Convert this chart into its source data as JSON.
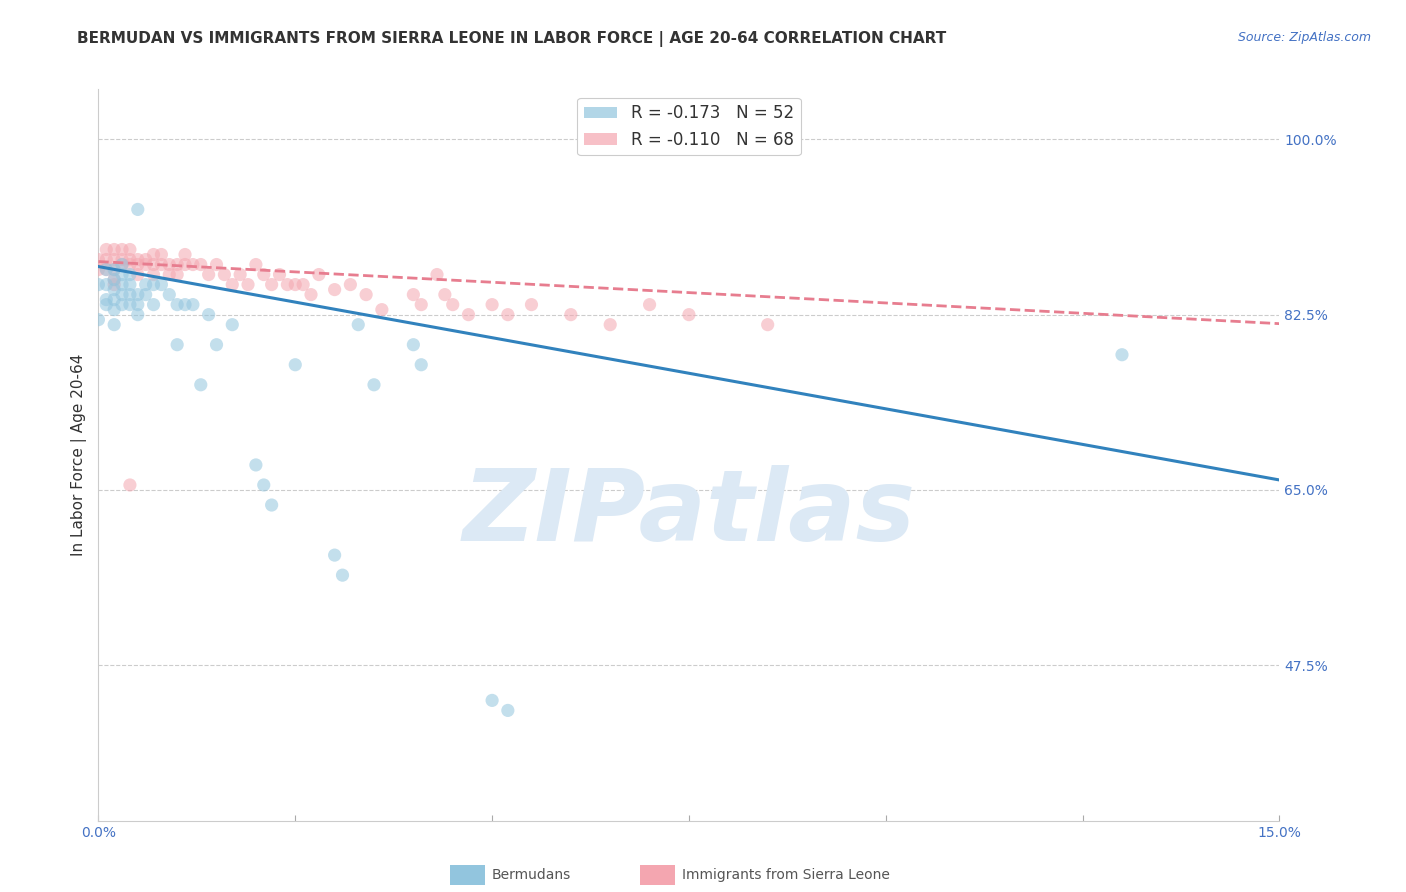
{
  "title": "BERMUDAN VS IMMIGRANTS FROM SIERRA LEONE IN LABOR FORCE | AGE 20-64 CORRELATION CHART",
  "source": "Source: ZipAtlas.com",
  "ylabel": "In Labor Force | Age 20-64",
  "xlim": [
    0.0,
    0.15
  ],
  "ylim": [
    0.32,
    1.05
  ],
  "yticks": [
    0.475,
    0.65,
    0.825,
    1.0
  ],
  "ytick_labels": [
    "47.5%",
    "65.0%",
    "82.5%",
    "100.0%"
  ],
  "xticks": [
    0.0,
    0.025,
    0.05,
    0.075,
    0.1,
    0.125,
    0.15
  ],
  "xtick_labels": [
    "0.0%",
    "",
    "",
    "",
    "",
    "",
    "15.0%"
  ],
  "bermudan_color": "#92c5de",
  "sierraleone_color": "#f4a6b0",
  "trendline_blue_color": "#3182bd",
  "trendline_pink_color": "#e77d8f",
  "background_color": "#ffffff",
  "watermark": "ZIPatlas",
  "watermark_color": "#dce9f5",
  "legend_label_blue": "R = -0.173   N = 52",
  "legend_label_pink": "R = -0.110   N = 68",
  "bermudan_x": [
    0.0,
    0.0,
    0.001,
    0.001,
    0.001,
    0.001,
    0.002,
    0.002,
    0.002,
    0.002,
    0.002,
    0.002,
    0.003,
    0.003,
    0.003,
    0.003,
    0.003,
    0.004,
    0.004,
    0.004,
    0.004,
    0.005,
    0.005,
    0.005,
    0.006,
    0.006,
    0.007,
    0.007,
    0.008,
    0.009,
    0.01,
    0.01,
    0.011,
    0.012,
    0.013,
    0.014,
    0.015,
    0.017,
    0.02,
    0.021,
    0.022,
    0.025,
    0.03,
    0.031,
    0.033,
    0.035,
    0.04,
    0.041,
    0.05,
    0.052,
    0.13,
    0.005
  ],
  "bermudan_y": [
    0.855,
    0.82,
    0.87,
    0.855,
    0.84,
    0.835,
    0.87,
    0.86,
    0.85,
    0.84,
    0.83,
    0.815,
    0.875,
    0.865,
    0.855,
    0.845,
    0.835,
    0.865,
    0.855,
    0.845,
    0.835,
    0.845,
    0.835,
    0.825,
    0.855,
    0.845,
    0.855,
    0.835,
    0.855,
    0.845,
    0.835,
    0.795,
    0.835,
    0.835,
    0.755,
    0.825,
    0.795,
    0.815,
    0.675,
    0.655,
    0.635,
    0.775,
    0.585,
    0.565,
    0.815,
    0.755,
    0.795,
    0.775,
    0.44,
    0.43,
    0.785,
    0.93
  ],
  "sierraleone_x": [
    0.0,
    0.0,
    0.001,
    0.001,
    0.001,
    0.002,
    0.002,
    0.002,
    0.002,
    0.002,
    0.003,
    0.003,
    0.003,
    0.004,
    0.004,
    0.004,
    0.005,
    0.005,
    0.005,
    0.006,
    0.006,
    0.007,
    0.007,
    0.007,
    0.008,
    0.008,
    0.009,
    0.009,
    0.01,
    0.01,
    0.011,
    0.011,
    0.012,
    0.013,
    0.014,
    0.015,
    0.016,
    0.017,
    0.018,
    0.019,
    0.02,
    0.021,
    0.022,
    0.023,
    0.024,
    0.025,
    0.026,
    0.027,
    0.028,
    0.03,
    0.032,
    0.034,
    0.036,
    0.04,
    0.041,
    0.043,
    0.044,
    0.045,
    0.047,
    0.05,
    0.052,
    0.055,
    0.06,
    0.065,
    0.07,
    0.075,
    0.085,
    0.004
  ],
  "sierraleone_y": [
    0.88,
    0.87,
    0.89,
    0.88,
    0.87,
    0.89,
    0.88,
    0.87,
    0.86,
    0.855,
    0.89,
    0.88,
    0.875,
    0.89,
    0.88,
    0.875,
    0.88,
    0.875,
    0.865,
    0.88,
    0.875,
    0.885,
    0.875,
    0.865,
    0.885,
    0.875,
    0.875,
    0.865,
    0.875,
    0.865,
    0.885,
    0.875,
    0.875,
    0.875,
    0.865,
    0.875,
    0.865,
    0.855,
    0.865,
    0.855,
    0.875,
    0.865,
    0.855,
    0.865,
    0.855,
    0.855,
    0.855,
    0.845,
    0.865,
    0.85,
    0.855,
    0.845,
    0.83,
    0.845,
    0.835,
    0.865,
    0.845,
    0.835,
    0.825,
    0.835,
    0.825,
    0.835,
    0.825,
    0.815,
    0.835,
    0.825,
    0.815,
    0.655
  ],
  "blue_trend_x0": 0.0,
  "blue_trend_x1": 0.15,
  "blue_trend_y0": 0.873,
  "blue_trend_y1": 0.66,
  "pink_trend_x0": 0.0,
  "pink_trend_x1": 0.15,
  "pink_trend_y0": 0.878,
  "pink_trend_y1": 0.816,
  "title_fontsize": 11,
  "source_fontsize": 9,
  "axis_label_fontsize": 11,
  "tick_fontsize": 10,
  "legend_fontsize": 12,
  "marker_size": 90
}
